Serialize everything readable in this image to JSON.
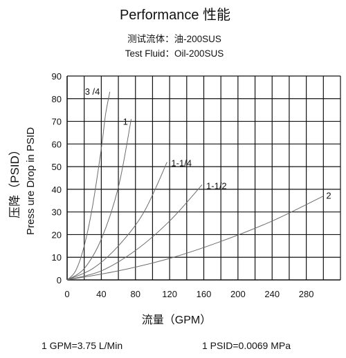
{
  "chart_data": {
    "type": "line",
    "title": "Performance 性能",
    "subtitle_cn": "测试流体：油-200SUS",
    "subtitle_en": "Test Fluid：Oil-200SUS",
    "xlabel": "流量（GPM）",
    "ylabel_cn": "压降（PSID）",
    "ylabel_en": "Press ure Drop in PSID",
    "xlim": [
      0,
      320
    ],
    "ylim": [
      0,
      90
    ],
    "x_ticks": [
      0,
      40,
      80,
      120,
      160,
      200,
      240,
      280
    ],
    "x_tick_labels": [
      "0",
      "40",
      "80",
      "120",
      "160",
      "200",
      "240",
      "280"
    ],
    "y_ticks": [
      0,
      10,
      20,
      30,
      40,
      50,
      60,
      70,
      80,
      90
    ],
    "y_tick_labels": [
      "0",
      "10",
      "20",
      "30",
      "40",
      "50",
      "60",
      "70",
      "80",
      "90"
    ],
    "grid": true,
    "series": [
      {
        "name": "3 /4",
        "x": [
          0,
          10,
          20,
          30,
          40,
          45,
          50
        ],
        "y": [
          0,
          4,
          15,
          33,
          58,
          73,
          83
        ]
      },
      {
        "name": "1",
        "x": [
          0,
          20,
          40,
          60,
          75
        ],
        "y": [
          0,
          5,
          18,
          41,
          71
        ]
      },
      {
        "name": "1-1/4",
        "x": [
          0,
          30,
          60,
          90,
          117
        ],
        "y": [
          0,
          5,
          15,
          30,
          52
        ]
      },
      {
        "name": "1-1/2",
        "x": [
          0,
          40,
          80,
          120,
          158
        ],
        "y": [
          0,
          4,
          13,
          26,
          42
        ]
      },
      {
        "name": "2",
        "x": [
          0,
          60,
          120,
          180,
          240,
          300
        ],
        "y": [
          0,
          4,
          9.5,
          17,
          26,
          37
        ]
      }
    ],
    "curve_label_text": [
      "3 /4",
      "1",
      "1-1/4",
      "1-1/2",
      "2"
    ]
  },
  "footnote_gpm": "1 GPM=3.75 L/Min",
  "footnote_psid": "1 PSID=0.0069 MPa",
  "colors": {
    "grid": "#111111",
    "curves": "#6b6b6b"
  }
}
